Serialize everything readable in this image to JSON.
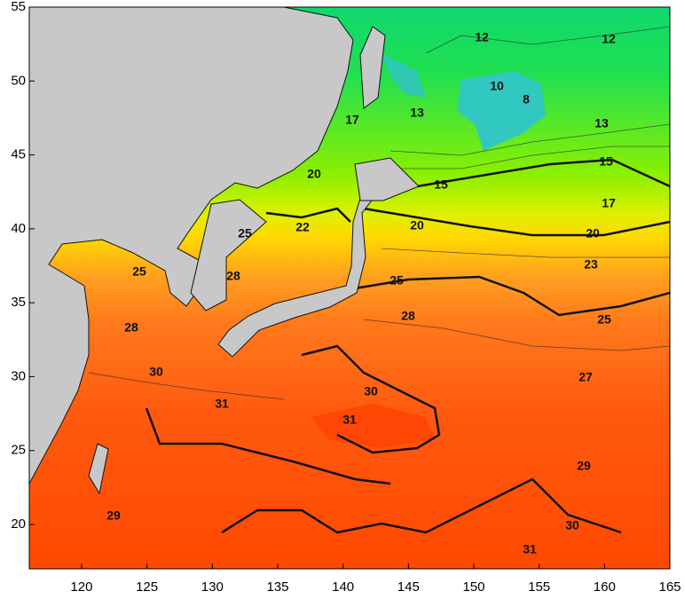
{
  "map": {
    "xaxis": {
      "lim": [
        116,
        165
      ],
      "ticks": [
        120,
        125,
        130,
        135,
        140,
        145,
        150,
        155,
        160,
        165
      ]
    },
    "yaxis": {
      "lim": [
        17,
        55
      ],
      "ticks": [
        20,
        25,
        30,
        35,
        40,
        45,
        50,
        55
      ]
    },
    "contour_labels": [
      12,
      12,
      10,
      8,
      13,
      13,
      17,
      15,
      20,
      15,
      17,
      22,
      20,
      20,
      25,
      23,
      25,
      28,
      25,
      28,
      25,
      28,
      30,
      27,
      30,
      31,
      31,
      29,
      29,
      30,
      31
    ]
  }
}
